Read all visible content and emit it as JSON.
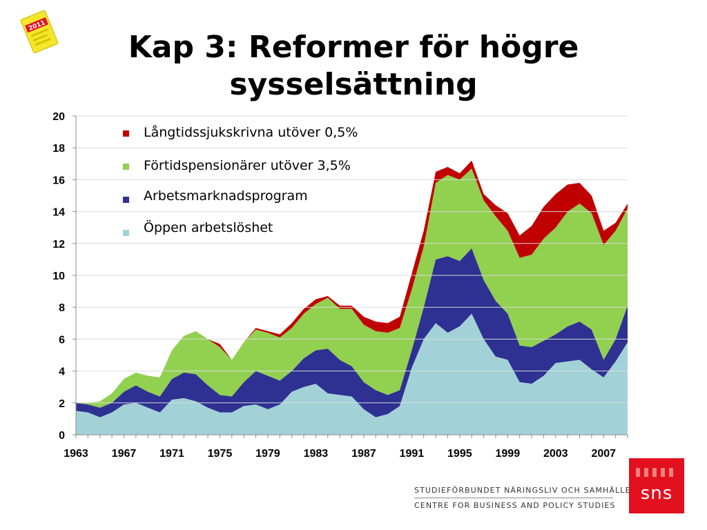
{
  "slide": {
    "title_line1": "Kap 3: Reformer för högre",
    "title_line2": "sysselsättning",
    "badge_year": "2011",
    "footer_line1": "STUDIEFÖRBUNDET NÄRINGSLIV OCH SAMHÄLLE",
    "footer_line2": "CENTRE FOR BUSINESS AND POLICY STUDIES",
    "logo_text": "sns",
    "colors": {
      "logo_red": "#e3101f"
    }
  },
  "chart_data": {
    "type": "area",
    "stacked": true,
    "x": [
      1963,
      1964,
      1965,
      1966,
      1967,
      1968,
      1969,
      1970,
      1971,
      1972,
      1973,
      1974,
      1975,
      1976,
      1977,
      1978,
      1979,
      1980,
      1981,
      1982,
      1983,
      1984,
      1985,
      1986,
      1987,
      1988,
      1989,
      1990,
      1991,
      1992,
      1993,
      1994,
      1995,
      1996,
      1997,
      1998,
      1999,
      2000,
      2001,
      2002,
      2003,
      2004,
      2005,
      2006,
      2007,
      2008,
      2009
    ],
    "xticks": [
      1963,
      1967,
      1971,
      1975,
      1979,
      1983,
      1987,
      1991,
      1995,
      1999,
      2003,
      2007
    ],
    "ylim": [
      0,
      20
    ],
    "yticks": [
      0,
      2,
      4,
      6,
      8,
      10,
      12,
      14,
      16,
      18,
      20
    ],
    "grid": true,
    "legend_position": "top-left",
    "series": [
      {
        "name": "Öppen arbetslöshet",
        "color": "#a2d2d8",
        "values": [
          1.5,
          1.4,
          1.1,
          1.4,
          1.9,
          2.0,
          1.7,
          1.4,
          2.2,
          2.3,
          2.1,
          1.7,
          1.4,
          1.4,
          1.8,
          1.9,
          1.6,
          1.9,
          2.7,
          3.0,
          3.2,
          2.6,
          2.5,
          2.4,
          1.6,
          1.1,
          1.3,
          1.8,
          4.2,
          6.0,
          7.0,
          6.4,
          6.8,
          7.6,
          6.0,
          4.9,
          4.7,
          3.3,
          3.2,
          3.7,
          4.5,
          4.6,
          4.7,
          4.1,
          3.6,
          4.6,
          5.8
        ]
      },
      {
        "name": "Arbetsmarknadsprogram",
        "color": "#2e3192",
        "values": [
          0.5,
          0.5,
          0.6,
          0.6,
          0.8,
          1.1,
          1.0,
          1.0,
          1.3,
          1.6,
          1.7,
          1.4,
          1.1,
          1.0,
          1.5,
          2.1,
          2.1,
          1.5,
          1.3,
          1.8,
          2.1,
          2.8,
          2.2,
          1.9,
          1.7,
          1.7,
          1.2,
          1.0,
          1.1,
          2.0,
          4.0,
          4.8,
          4.1,
          4.1,
          3.7,
          3.5,
          2.9,
          2.3,
          2.3,
          2.2,
          1.8,
          2.2,
          2.4,
          2.5,
          1.1,
          1.4,
          2.3
        ]
      },
      {
        "name": "Förtidspensionärer utöver 3,5%",
        "color": "#92d050",
        "values": [
          0.0,
          0.1,
          0.4,
          0.6,
          0.8,
          0.8,
          1.0,
          1.2,
          1.8,
          2.3,
          2.7,
          2.9,
          3.0,
          2.3,
          2.5,
          2.6,
          2.7,
          2.7,
          2.7,
          2.8,
          2.9,
          3.2,
          3.2,
          3.6,
          3.6,
          3.7,
          3.9,
          3.9,
          3.8,
          3.8,
          4.8,
          5.1,
          5.1,
          5.0,
          5.0,
          5.3,
          5.2,
          5.5,
          5.8,
          6.4,
          6.7,
          7.2,
          7.4,
          7.3,
          7.2,
          6.8,
          6.1
        ]
      },
      {
        "name": "Långtidssjukskrivna utöver 0,5%",
        "color": "#c00000",
        "values": [
          0.0,
          0.0,
          0.0,
          0.0,
          0.0,
          0.0,
          0.0,
          0.0,
          0.0,
          0.0,
          0.0,
          0.0,
          0.2,
          0.0,
          0.0,
          0.1,
          0.1,
          0.2,
          0.3,
          0.3,
          0.3,
          0.1,
          0.2,
          0.2,
          0.5,
          0.6,
          0.6,
          0.7,
          1.0,
          1.0,
          0.7,
          0.5,
          0.4,
          0.5,
          0.4,
          0.7,
          1.1,
          1.4,
          1.8,
          2.0,
          2.1,
          1.7,
          1.3,
          1.1,
          0.9,
          0.5,
          0.3
        ]
      }
    ]
  }
}
